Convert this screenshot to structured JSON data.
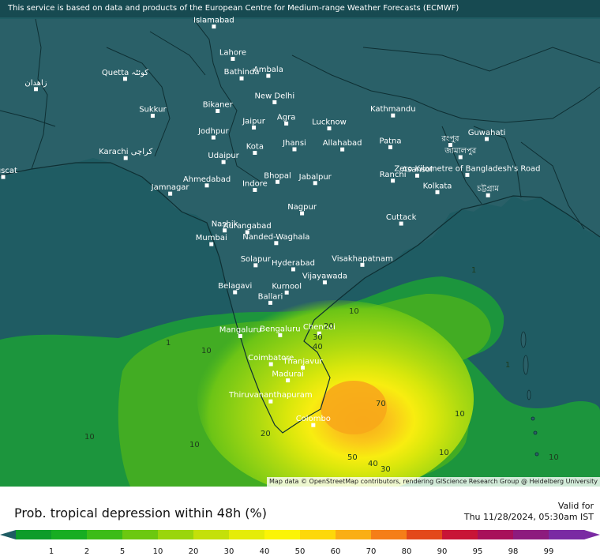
{
  "banner": {
    "text": "This service is based on data and products of the European Centre for Medium-range Weather Forecasts (ECMWF)"
  },
  "attribution": {
    "text": "Map data © OpenStreetMap contributors, rendering GIScience Research Group @ Heidelberg University"
  },
  "map": {
    "ocean_color": "#1f5c63",
    "land_color": "#2a6068",
    "border_color": "#0e2f33",
    "places": [
      {
        "name": "Islamabad",
        "lon": 73.05,
        "lat": 33.69
      },
      {
        "name": "Lahore",
        "lon": 74.35,
        "lat": 31.52
      },
      {
        "name": "Quetta کوئٹہ",
        "lon": 66.97,
        "lat": 30.18
      },
      {
        "name": "زاهدان",
        "lon": 60.86,
        "lat": 29.49
      },
      {
        "name": "Bathinda",
        "lon": 74.95,
        "lat": 30.21
      },
      {
        "name": "Ambala",
        "lon": 76.78,
        "lat": 30.38
      },
      {
        "name": "New Delhi",
        "lon": 77.21,
        "lat": 28.61
      },
      {
        "name": "Sukkur",
        "lon": 68.86,
        "lat": 27.7
      },
      {
        "name": "Bikaner",
        "lon": 73.31,
        "lat": 28.02
      },
      {
        "name": "Jaipur",
        "lon": 75.79,
        "lat": 26.91
      },
      {
        "name": "Agra",
        "lon": 78.01,
        "lat": 27.18
      },
      {
        "name": "Lucknow",
        "lon": 80.95,
        "lat": 26.85
      },
      {
        "name": "Kathmandu",
        "lon": 85.32,
        "lat": 27.72
      },
      {
        "name": "জামালপুর",
        "lon": 89.94,
        "lat": 24.92
      },
      {
        "name": "Jodhpur",
        "lon": 73.02,
        "lat": 26.24
      },
      {
        "name": "Jhansi",
        "lon": 78.57,
        "lat": 25.45
      },
      {
        "name": "Allahabad",
        "lon": 81.85,
        "lat": 25.44
      },
      {
        "name": "Patna",
        "lon": 85.14,
        "lat": 25.59
      },
      {
        "name": "রংপুর",
        "lon": 89.25,
        "lat": 25.74
      },
      {
        "name": "Guwahati",
        "lon": 91.74,
        "lat": 26.14
      },
      {
        "name": "Karachi کراچی",
        "lon": 67.01,
        "lat": 24.86
      },
      {
        "name": "Kota",
        "lon": 75.86,
        "lat": 25.21
      },
      {
        "name": "Udaipur",
        "lon": 73.71,
        "lat": 24.59
      },
      {
        "name": "Zero Kilometre of Bangladesh's Road",
        "lon": 90.41,
        "lat": 23.73
      },
      {
        "name": "Muscat",
        "lon": 58.41,
        "lat": 23.59
      },
      {
        "name": "Ahmedabad",
        "lon": 72.57,
        "lat": 23.02
      },
      {
        "name": "Bhopal",
        "lon": 77.41,
        "lat": 23.26
      },
      {
        "name": "Jabalpur",
        "lon": 79.99,
        "lat": 23.18
      },
      {
        "name": "Ranchi",
        "lon": 85.31,
        "lat": 23.34
      },
      {
        "name": "Asansol",
        "lon": 86.98,
        "lat": 23.68
      },
      {
        "name": "Indore",
        "lon": 75.86,
        "lat": 22.72
      },
      {
        "name": "Kolkata",
        "lon": 88.36,
        "lat": 22.57
      },
      {
        "name": "চট্টগ্রাম",
        "lon": 91.83,
        "lat": 22.36
      },
      {
        "name": "Jamnagar",
        "lon": 70.06,
        "lat": 22.47
      },
      {
        "name": "Nagpur",
        "lon": 79.09,
        "lat": 21.15
      },
      {
        "name": "Cuttack",
        "lon": 85.88,
        "lat": 20.46
      },
      {
        "name": "Nashik",
        "lon": 73.79,
        "lat": 20.0
      },
      {
        "name": "Aurangabad",
        "lon": 75.34,
        "lat": 19.88
      },
      {
        "name": "Mumbai",
        "lon": 72.88,
        "lat": 19.08
      },
      {
        "name": "Nanded-Waghala",
        "lon": 77.32,
        "lat": 19.15
      },
      {
        "name": "Solapur",
        "lon": 75.91,
        "lat": 17.66
      },
      {
        "name": "Hyderabad",
        "lon": 78.49,
        "lat": 17.39
      },
      {
        "name": "Visakhapatnam",
        "lon": 83.22,
        "lat": 17.69
      },
      {
        "name": "Vijayawada",
        "lon": 80.65,
        "lat": 16.51
      },
      {
        "name": "Belagavi",
        "lon": 74.5,
        "lat": 15.85
      },
      {
        "name": "Ballari",
        "lon": 76.92,
        "lat": 15.14
      },
      {
        "name": "Kurnool",
        "lon": 78.04,
        "lat": 15.83
      },
      {
        "name": "Bengaluru",
        "lon": 77.59,
        "lat": 12.97
      },
      {
        "name": "Chennai",
        "lon": 80.27,
        "lat": 13.08
      },
      {
        "name": "Mangaluru",
        "lon": 74.86,
        "lat": 12.91
      },
      {
        "name": "Coimbatore",
        "lon": 76.96,
        "lat": 11.02
      },
      {
        "name": "Thanjavur",
        "lon": 79.14,
        "lat": 10.79
      },
      {
        "name": "Madurai",
        "lon": 78.12,
        "lat": 9.93
      },
      {
        "name": "Thiruvananthapuram",
        "lon": 76.94,
        "lat": 8.52
      },
      {
        "name": "Colombo",
        "lon": 79.86,
        "lat": 6.93
      }
    ],
    "contour_labels": [
      "1",
      "10",
      "20",
      "30",
      "40",
      "50",
      "70"
    ]
  },
  "legend": {
    "title": "Prob. tropical depression within 48h (%)",
    "valid_label": "Valid for",
    "valid_time": "Thu 11/28/2024, 05:30am IST",
    "ticks": [
      "1",
      "2",
      "5",
      "10",
      "20",
      "30",
      "40",
      "50",
      "60",
      "70",
      "80",
      "90",
      "95",
      "98",
      "99"
    ],
    "colors": [
      "#0d9c2a",
      "#17ad22",
      "#3cbc18",
      "#6cc810",
      "#9ad50c",
      "#c4e00a",
      "#e5ec08",
      "#fbf406",
      "#fdd80a",
      "#faae14",
      "#f57e18",
      "#e3481a",
      "#c81436",
      "#a8105a",
      "#8d1b7e",
      "#7a2aa3"
    ],
    "under_color": "#1f5c63"
  }
}
